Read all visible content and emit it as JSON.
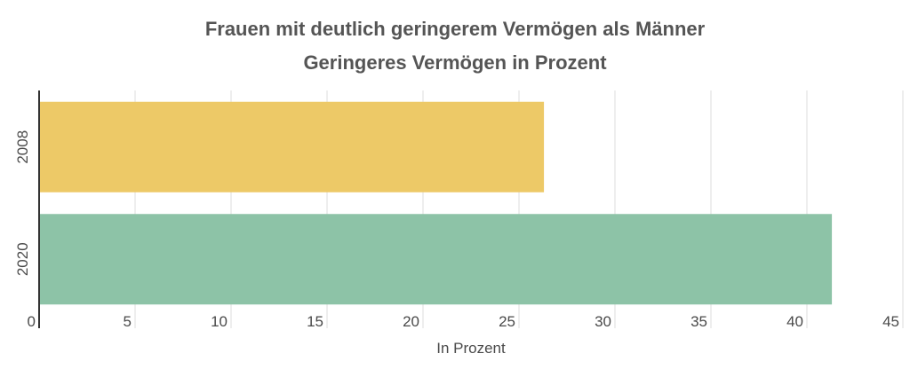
{
  "chart_data": {
    "type": "bar",
    "orientation": "horizontal",
    "title": "Frauen mit deutlich geringerem Vermögen als Männer",
    "subtitle": "Geringeres Vermögen in Prozent",
    "categories": [
      "2008",
      "2020"
    ],
    "values": [
      26.3,
      41.3
    ],
    "colors": [
      "#EDC967",
      "#8DC3A7"
    ],
    "xlabel": "In Prozent",
    "xlim": [
      0,
      45
    ],
    "xticks": [
      0,
      5,
      10,
      15,
      20,
      25,
      30,
      35,
      40,
      45
    ],
    "grid": true
  }
}
